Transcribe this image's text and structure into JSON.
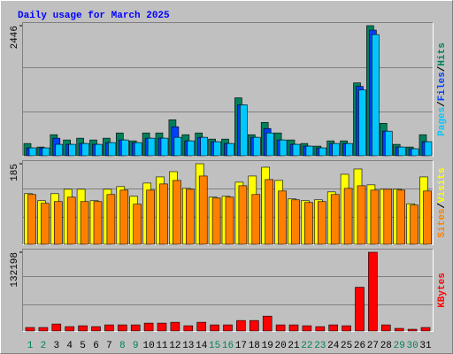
{
  "chart_data": [
    {
      "type": "bar",
      "title": "Daily usage for March 2025",
      "ylim": [
        0,
        2446
      ],
      "yticks": [
        2446
      ],
      "legend_separator": "/",
      "series": [
        {
          "name": "Hits",
          "color": "#00805c",
          "values": [
            246,
            180,
            410,
            312,
            345,
            312,
            345,
            443,
            295,
            443,
            443,
            689,
            410,
            443,
            328,
            328,
            1099,
            410,
            640,
            443,
            312,
            246,
            197,
            295,
            295,
            1378,
            2446,
            623,
            230,
            180,
            410
          ]
        },
        {
          "name": "Files",
          "color": "#0040ff",
          "values": [
            164,
            164,
            345,
            230,
            246,
            230,
            262,
            312,
            262,
            345,
            345,
            558,
            295,
            361,
            279,
            246,
            968,
            361,
            525,
            312,
            230,
            197,
            164,
            246,
            246,
            1312,
            2363,
            476,
            180,
            148,
            279
          ]
        },
        {
          "name": "Pages",
          "color": "#00c8ff",
          "values": [
            164,
            164,
            230,
            230,
            246,
            230,
            262,
            312,
            262,
            345,
            345,
            361,
            295,
            361,
            279,
            246,
            968,
            361,
            443,
            312,
            230,
            197,
            164,
            246,
            246,
            1246,
            2280,
            476,
            180,
            148,
            279
          ]
        }
      ]
    },
    {
      "type": "bar",
      "ylim": [
        0,
        185
      ],
      "yticks": [
        185
      ],
      "legend_separator": "/",
      "series": [
        {
          "name": "Visits",
          "color": "#ffff00",
          "values": [
            117,
            101,
            117,
            127,
            127,
            101,
            127,
            133,
            111,
            141,
            155,
            167,
            129,
            185,
            109,
            111,
            143,
            157,
            177,
            147,
            105,
            101,
            103,
            121,
            161,
            173,
            137,
            127,
            127,
            94,
            155
          ]
        },
        {
          "name": "Sites",
          "color": "#ff8000",
          "values": [
            115,
            95,
            99,
            109,
            99,
            99,
            115,
            125,
            93,
            125,
            139,
            147,
            127,
            157,
            107,
            109,
            135,
            115,
            149,
            123,
            103,
            97,
            99,
            115,
            129,
            135,
            125,
            127,
            125,
            91,
            123
          ]
        }
      ]
    },
    {
      "type": "bar",
      "ylim": [
        0,
        132198
      ],
      "yticks": [
        132198
      ],
      "categories": [
        "1",
        "2",
        "3",
        "4",
        "5",
        "6",
        "7",
        "8",
        "9",
        "10",
        "11",
        "12",
        "13",
        "14",
        "15",
        "16",
        "17",
        "18",
        "19",
        "20",
        "21",
        "22",
        "23",
        "24",
        "25",
        "26",
        "27",
        "28",
        "29",
        "30",
        "31"
      ],
      "category_colors": [
        "#00805c",
        "#00805c",
        "#000000",
        "#000000",
        "#000000",
        "#000000",
        "#000000",
        "#00805c",
        "#00805c",
        "#000000",
        "#000000",
        "#000000",
        "#000000",
        "#000000",
        "#00805c",
        "#00805c",
        "#000000",
        "#000000",
        "#000000",
        "#000000",
        "#000000",
        "#00805c",
        "#00805c",
        "#000000",
        "#000000",
        "#000000",
        "#000000",
        "#000000",
        "#00805c",
        "#00805c",
        "#000000"
      ],
      "series": [
        {
          "name": "KBytes",
          "color": "#ff0000",
          "values": [
            7264,
            7264,
            13074,
            8716,
            10169,
            8716,
            11622,
            11622,
            11622,
            14527,
            14527,
            15980,
            10169,
            15980,
            11622,
            11622,
            18885,
            18885,
            26149,
            11622,
            11622,
            10169,
            8716,
            11622,
            10169,
            74088,
            132198,
            11622,
            5811,
            4358,
            7264
          ]
        }
      ]
    }
  ]
}
